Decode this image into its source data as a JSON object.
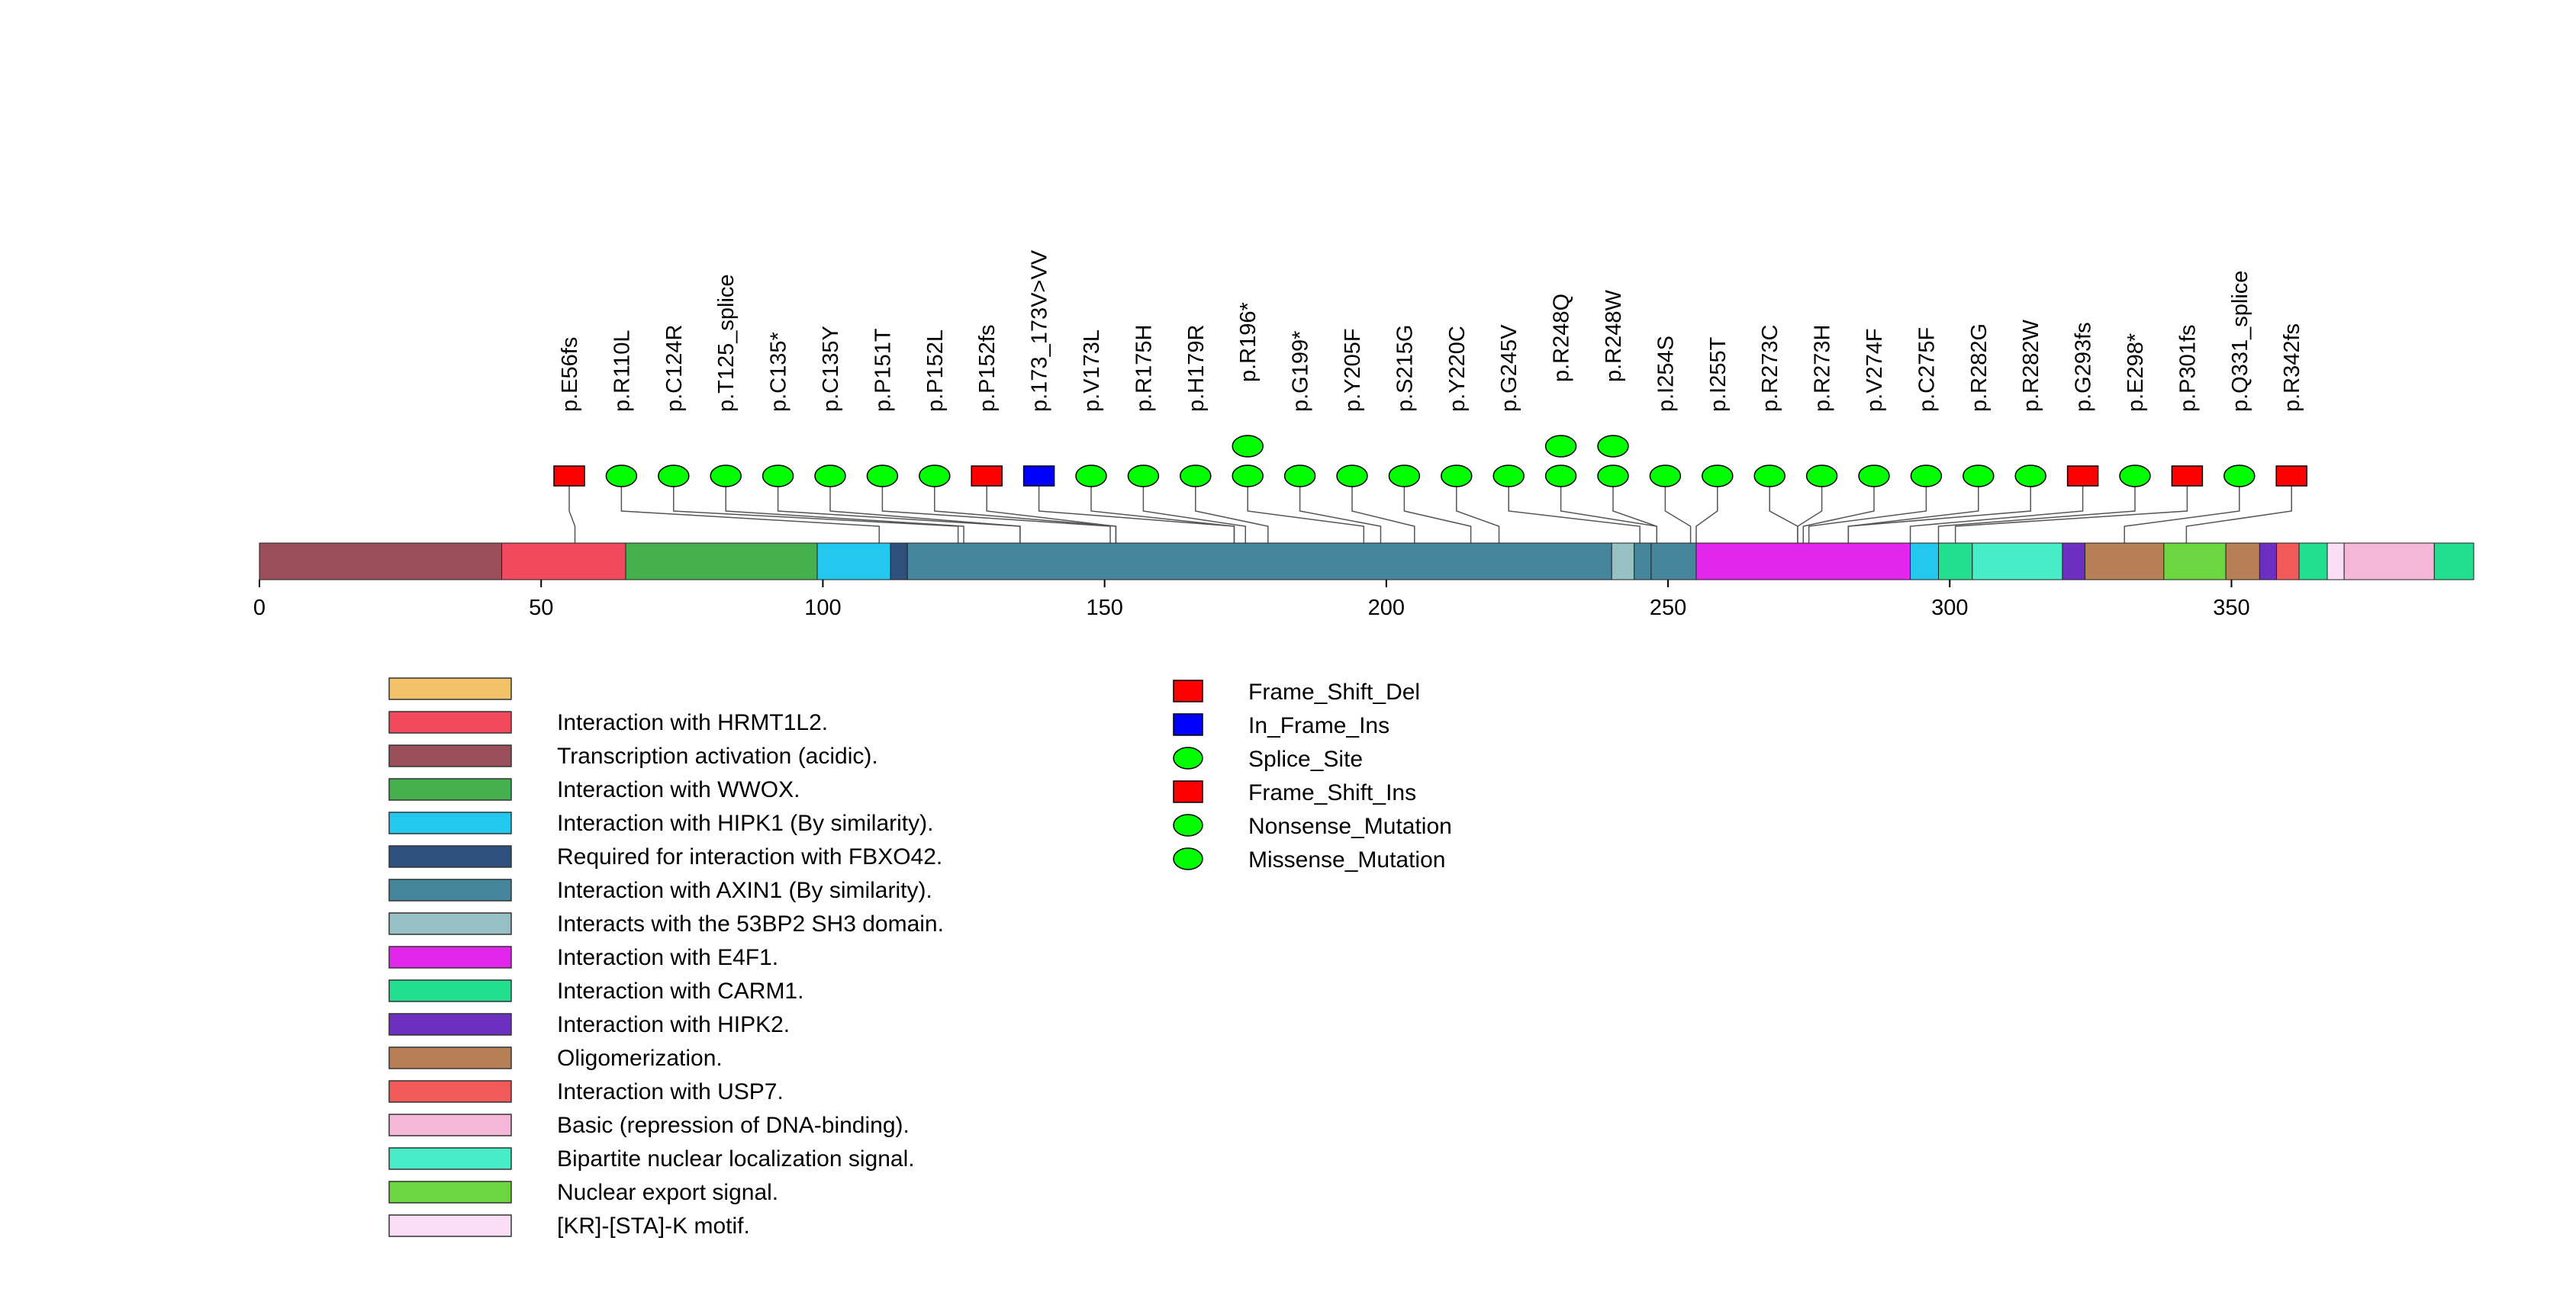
{
  "protein": {
    "length": 393,
    "axis_ticks": [
      0,
      50,
      100,
      150,
      200,
      250,
      300,
      350
    ]
  },
  "domains": [
    {
      "name": "",
      "start": 0,
      "end": 0,
      "color": "#F2C26B"
    },
    {
      "name": "Interaction with HRMT1L2.",
      "start": 43,
      "end": 65,
      "color": "#F24A5C"
    },
    {
      "name": "Transcription activation (acidic).",
      "start": 0,
      "end": 43,
      "color": "#9B4F5A"
    },
    {
      "name": "Interaction with WWOX.",
      "start": 65,
      "end": 99,
      "color": "#45B04E"
    },
    {
      "name": "Interaction with HIPK1 (By similarity).",
      "start": 99,
      "end": 112,
      "color": "#22C8EE"
    },
    {
      "name": "Required for interaction with FBXO42.",
      "start": 112,
      "end": 115,
      "color": "#2F4F7C"
    },
    {
      "name": "Interaction with AXIN1 (By similarity).",
      "start": 115,
      "end": 240,
      "color": "#45869C"
    },
    {
      "name": "Interacts with the 53BP2 SH3 domain.",
      "start": 240,
      "end": 244,
      "color": "#96C0C4"
    },
    {
      "name": "Interacts with the 53BP2 SH3 domain.",
      "start": 244,
      "end": 247,
      "color": "#45869C"
    },
    {
      "name": "Interacts with the 53BP2 SH3 domain.",
      "start": 247,
      "end": 255,
      "color": "#45869C"
    },
    {
      "name": "Interaction with E4F1.",
      "start": 255,
      "end": 293,
      "color": "#E326EB"
    },
    {
      "name": "Interaction with HIPK1 (By similarity).",
      "start": 293,
      "end": 298,
      "color": "#22C8EE"
    },
    {
      "name": "Interaction with CARM1.",
      "start": 298,
      "end": 304,
      "color": "#22DE8F"
    },
    {
      "name": "Bipartite nuclear localization signal.",
      "start": 304,
      "end": 320,
      "color": "#46EDC6"
    },
    {
      "name": "Interaction with HIPK2.",
      "start": 320,
      "end": 324,
      "color": "#6C2FC0"
    },
    {
      "name": "Oligomerization.",
      "start": 324,
      "end": 338,
      "color": "#B77F56"
    },
    {
      "name": "Nuclear export signal.",
      "start": 338,
      "end": 349,
      "color": "#6BD63F"
    },
    {
      "name": "Oligomerization.",
      "start": 349,
      "end": 355,
      "color": "#B77F56"
    },
    {
      "name": "Interaction with HIPK2.",
      "start": 355,
      "end": 358,
      "color": "#6C2FC0"
    },
    {
      "name": "Interaction with USP7.",
      "start": 358,
      "end": 362,
      "color": "#F25A5A"
    },
    {
      "name": "Interaction with CARM1.",
      "start": 362,
      "end": 367,
      "color": "#22DE8F"
    },
    {
      "name": "[KR]-[STA]-K motif.",
      "start": 367,
      "end": 370,
      "color": "#FBDDF5"
    },
    {
      "name": "Basic (repression of DNA-binding).",
      "start": 370,
      "end": 386,
      "color": "#F4B7D8"
    },
    {
      "name": "Interaction with CARM1.",
      "start": 386,
      "end": 393,
      "color": "#22DE8F"
    }
  ],
  "mutations": [
    {
      "label": "p.E56fs",
      "pos": 56,
      "type": "Frame_Shift_Del",
      "count": 1
    },
    {
      "label": "p.R110L",
      "pos": 110,
      "type": "Missense_Mutation",
      "count": 1
    },
    {
      "label": "p.C124R",
      "pos": 124,
      "type": "Missense_Mutation",
      "count": 1
    },
    {
      "label": "p.T125_splice",
      "pos": 125,
      "type": "Splice_Site",
      "count": 1
    },
    {
      "label": "p.C135*",
      "pos": 135,
      "type": "Nonsense_Mutation",
      "count": 1
    },
    {
      "label": "p.C135Y",
      "pos": 135,
      "type": "Missense_Mutation",
      "count": 1
    },
    {
      "label": "p.P151T",
      "pos": 151,
      "type": "Missense_Mutation",
      "count": 1
    },
    {
      "label": "p.P152L",
      "pos": 152,
      "type": "Missense_Mutation",
      "count": 1
    },
    {
      "label": "p.P152fs",
      "pos": 152,
      "type": "Frame_Shift_Del",
      "count": 1
    },
    {
      "label": "p.173_173V>VV",
      "pos": 173,
      "type": "In_Frame_Ins",
      "count": 1
    },
    {
      "label": "p.V173L",
      "pos": 173,
      "type": "Missense_Mutation",
      "count": 1
    },
    {
      "label": "p.R175H",
      "pos": 175,
      "type": "Missense_Mutation",
      "count": 1
    },
    {
      "label": "p.H179R",
      "pos": 179,
      "type": "Missense_Mutation",
      "count": 1
    },
    {
      "label": "p.R196*",
      "pos": 196,
      "type": "Nonsense_Mutation",
      "count": 2
    },
    {
      "label": "p.G199*",
      "pos": 199,
      "type": "Nonsense_Mutation",
      "count": 1
    },
    {
      "label": "p.Y205F",
      "pos": 205,
      "type": "Missense_Mutation",
      "count": 1
    },
    {
      "label": "p.S215G",
      "pos": 215,
      "type": "Missense_Mutation",
      "count": 1
    },
    {
      "label": "p.Y220C",
      "pos": 220,
      "type": "Missense_Mutation",
      "count": 1
    },
    {
      "label": "p.G245V",
      "pos": 245,
      "type": "Missense_Mutation",
      "count": 1
    },
    {
      "label": "p.R248Q",
      "pos": 248,
      "type": "Missense_Mutation",
      "count": 2
    },
    {
      "label": "p.R248W",
      "pos": 248,
      "type": "Missense_Mutation",
      "count": 2
    },
    {
      "label": "p.I254S",
      "pos": 254,
      "type": "Missense_Mutation",
      "count": 1
    },
    {
      "label": "p.I255T",
      "pos": 255,
      "type": "Missense_Mutation",
      "count": 1
    },
    {
      "label": "p.R273C",
      "pos": 273,
      "type": "Missense_Mutation",
      "count": 1
    },
    {
      "label": "p.R273H",
      "pos": 273,
      "type": "Missense_Mutation",
      "count": 1
    },
    {
      "label": "p.V274F",
      "pos": 274,
      "type": "Missense_Mutation",
      "count": 1
    },
    {
      "label": "p.C275F",
      "pos": 275,
      "type": "Missense_Mutation",
      "count": 1
    },
    {
      "label": "p.R282G",
      "pos": 282,
      "type": "Missense_Mutation",
      "count": 1
    },
    {
      "label": "p.R282W",
      "pos": 282,
      "type": "Missense_Mutation",
      "count": 1
    },
    {
      "label": "p.G293fs",
      "pos": 293,
      "type": "Frame_Shift_Del",
      "count": 1
    },
    {
      "label": "p.E298*",
      "pos": 298,
      "type": "Nonsense_Mutation",
      "count": 1
    },
    {
      "label": "p.P301fs",
      "pos": 301,
      "type": "Frame_Shift_Del",
      "count": 1
    },
    {
      "label": "p.Q331_splice",
      "pos": 331,
      "type": "Splice_Site",
      "count": 1
    },
    {
      "label": "p.R342fs",
      "pos": 342,
      "type": "Frame_Shift_Ins",
      "count": 1
    }
  ],
  "legend_domains": [
    {
      "label": "",
      "color": "#F2C26B"
    },
    {
      "label": "Interaction with HRMT1L2.",
      "color": "#F24A5C"
    },
    {
      "label": "Transcription activation (acidic).",
      "color": "#9B4F5A"
    },
    {
      "label": "Interaction with WWOX.",
      "color": "#45B04E"
    },
    {
      "label": "Interaction with HIPK1 (By similarity).",
      "color": "#22C8EE"
    },
    {
      "label": "Required for interaction with FBXO42.",
      "color": "#2F4F7C"
    },
    {
      "label": "Interaction with AXIN1 (By similarity).",
      "color": "#45869C"
    },
    {
      "label": "Interacts with the 53BP2 SH3 domain.",
      "color": "#96C0C4"
    },
    {
      "label": "Interaction with E4F1.",
      "color": "#E326EB"
    },
    {
      "label": "Interaction with CARM1.",
      "color": "#22DE8F"
    },
    {
      "label": "Interaction with HIPK2.",
      "color": "#6C2FC0"
    },
    {
      "label": "Oligomerization.",
      "color": "#B77F56"
    },
    {
      "label": "Interaction with USP7.",
      "color": "#F25A5A"
    },
    {
      "label": "Basic (repression of DNA-binding).",
      "color": "#F4B7D8"
    },
    {
      "label": "Bipartite nuclear localization signal.",
      "color": "#46EDC6"
    },
    {
      "label": "Nuclear export signal.",
      "color": "#6BD63F"
    },
    {
      "label": "[KR]-[STA]-K motif.",
      "color": "#FBDDF5"
    }
  ],
  "legend_mutations": [
    {
      "label": "Frame_Shift_Del",
      "shape": "rect",
      "color": "#FF0000"
    },
    {
      "label": "In_Frame_Ins",
      "shape": "rect",
      "color": "#0000FF"
    },
    {
      "label": "Splice_Site",
      "shape": "ellipse",
      "color": "#00FF00"
    },
    {
      "label": "Frame_Shift_Ins",
      "shape": "rect",
      "color": "#FF0000"
    },
    {
      "label": "Nonsense_Mutation",
      "shape": "ellipse",
      "color": "#00FF00"
    },
    {
      "label": "Missense_Mutation",
      "shape": "ellipse",
      "color": "#00FF00"
    }
  ]
}
